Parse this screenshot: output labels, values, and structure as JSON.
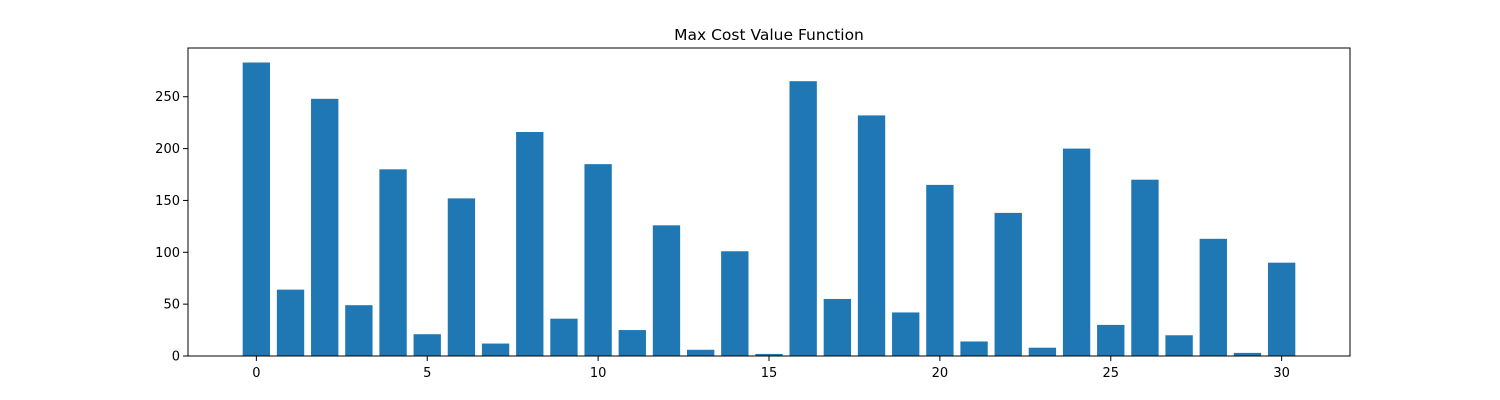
{
  "chart_data": {
    "type": "bar",
    "title": "Max Cost Value Function",
    "xlabel": "",
    "ylabel": "",
    "x": [
      0,
      1,
      2,
      3,
      4,
      5,
      6,
      7,
      8,
      9,
      10,
      11,
      12,
      13,
      14,
      15,
      16,
      17,
      18,
      19,
      20,
      21,
      22,
      23,
      24,
      25,
      26,
      27,
      28,
      29,
      30
    ],
    "values": [
      283,
      64,
      248,
      49,
      180,
      21,
      152,
      12,
      216,
      36,
      185,
      25,
      126,
      6,
      101,
      2,
      265,
      55,
      232,
      42,
      165,
      14,
      138,
      8,
      200,
      30,
      170,
      20,
      113,
      3,
      90
    ],
    "xlim": [
      -2,
      32
    ],
    "ylim": [
      0,
      297
    ],
    "xticks": [
      0,
      5,
      10,
      15,
      20,
      25,
      30
    ],
    "yticks": [
      0,
      50,
      100,
      150,
      200,
      250
    ],
    "grid": false,
    "bar_color": "#1f77b4"
  }
}
